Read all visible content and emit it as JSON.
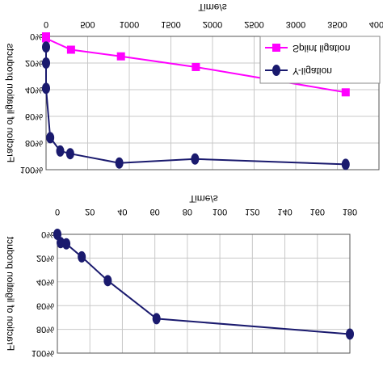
{
  "chart_data": [
    {
      "type": "line",
      "xlabel": "Time/s",
      "ylabel": "Fraction of ligation products",
      "xlim": [
        0,
        4000
      ],
      "xticks": [
        0,
        500,
        1000,
        1500,
        2000,
        2500,
        3000,
        3500,
        4000
      ],
      "ylim": [
        0,
        100
      ],
      "yticks": [
        {
          "value": 0,
          "label": "0%"
        },
        {
          "value": 20,
          "label": "20%"
        },
        {
          "value": 40,
          "label": "40%"
        },
        {
          "value": 60,
          "label": "60%"
        },
        {
          "value": 80,
          "label": "80%"
        },
        {
          "value": 100,
          "label": "100%"
        }
      ],
      "grid": true,
      "legend": "top right",
      "series": [
        {
          "name": "Splint ligation",
          "color": "#ff00ff",
          "marker": "square",
          "x": [
            0,
            0,
            300,
            900,
            1800,
            3600
          ],
          "values": [
            0,
            1.5,
            10,
            15,
            23,
            42
          ]
        },
        {
          "name": "Y-ligation",
          "color": "#1a1a6e",
          "marker": "circle",
          "x": [
            0,
            0,
            0,
            50,
            170,
            290,
            880,
            1790,
            3600
          ],
          "values": [
            8,
            20,
            39,
            76,
            86,
            88,
            95,
            92,
            96
          ]
        }
      ]
    },
    {
      "type": "line",
      "xlabel": "Time/s",
      "ylabel": "Fraction of ligation product",
      "xlim": [
        0,
        180
      ],
      "xticks": [
        0,
        20,
        40,
        60,
        80,
        100,
        120,
        140,
        160,
        180
      ],
      "ylim": [
        0,
        100
      ],
      "yticks": [
        {
          "value": 0,
          "label": "0%"
        },
        {
          "value": 20,
          "label": "20%"
        },
        {
          "value": 40,
          "label": "40%"
        },
        {
          "value": 60,
          "label": "60%"
        },
        {
          "value": 80,
          "label": "80%"
        },
        {
          "value": 100,
          "label": "100%"
        }
      ],
      "grid": true,
      "color": "#1a1a6e",
      "x": [
        0,
        2,
        5.5,
        15,
        31,
        61,
        180
      ],
      "values": [
        0,
        7,
        8,
        19,
        39,
        71,
        84
      ]
    }
  ]
}
